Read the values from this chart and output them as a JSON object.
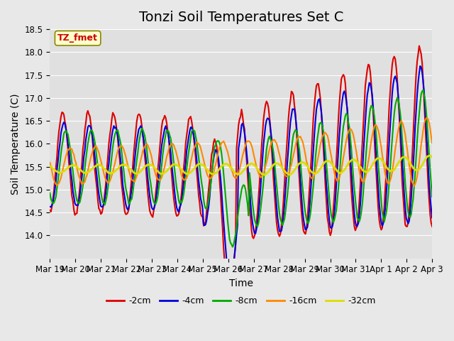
{
  "title": "Tonzi Soil Temperatures Set C",
  "xlabel": "Time",
  "ylabel": "Soil Temperature (C)",
  "ylim": [
    13.5,
    18.5
  ],
  "yticks": [
    14.0,
    14.5,
    15.0,
    15.5,
    16.0,
    16.5,
    17.0,
    17.5,
    18.0,
    18.5
  ],
  "xtick_labels": [
    "Mar 19",
    "Mar 20",
    "Mar 21",
    "Mar 22",
    "Mar 23",
    "Mar 24",
    "Mar 25",
    "Mar 26",
    "Mar 27",
    "Mar 28",
    "Mar 29",
    "Mar 30",
    "Mar 31",
    "Apr 1",
    "Apr 2",
    "Apr 3"
  ],
  "legend_labels": [
    "-2cm",
    "-4cm",
    "-8cm",
    "-16cm",
    "-32cm"
  ],
  "legend_colors": [
    "#dd0000",
    "#0000dd",
    "#00aa00",
    "#ff8800",
    "#dddd00"
  ],
  "line_widths": [
    1.5,
    1.5,
    1.5,
    1.5,
    2.0
  ],
  "annotation_text": "TZ_fmet",
  "annotation_color": "#cc0000",
  "annotation_bg": "#ffffcc",
  "background_color": "#e8e8e8",
  "plot_bg_color": "#e0e0e0",
  "title_fontsize": 14,
  "axis_fontsize": 10,
  "tick_fontsize": 8.5,
  "days": 16
}
